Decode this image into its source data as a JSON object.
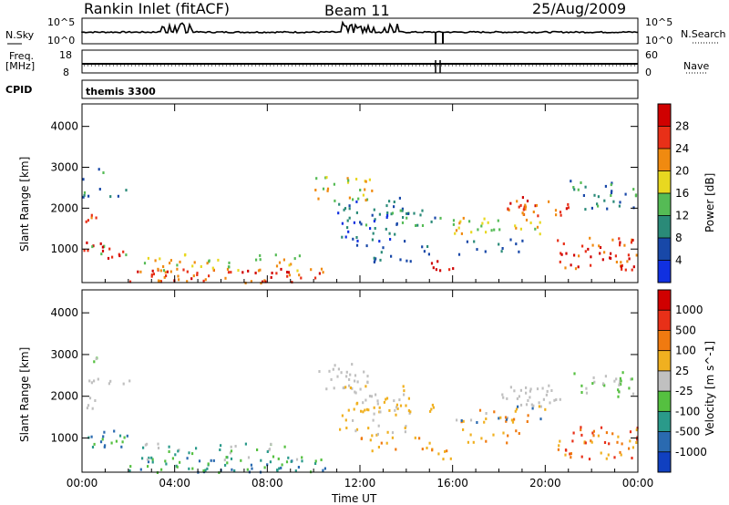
{
  "header": {
    "station": "Rankin Inlet (fitACF)",
    "beam": "Beam 11",
    "date": "25/Aug/2009"
  },
  "panel_labels": {
    "nsky": "N.Sky",
    "nsearch": "N.Search",
    "freq": "Freq.",
    "freq_unit": "[MHz]",
    "nave": "Nave",
    "cpid": "CPID",
    "cpid_value": "themis 3300"
  },
  "noise_ticks": {
    "left": [
      "10^5",
      "10^0"
    ],
    "right": [
      "10^5",
      "10^0"
    ]
  },
  "freq_ticks": {
    "left": [
      "18",
      "8"
    ],
    "right": [
      "60",
      "0"
    ]
  },
  "chart_data": [
    {
      "type": "heatmap",
      "title": "",
      "xlabel": "Time UT",
      "ylabel": "Slant Range [km]",
      "x_ticks": [
        "00:00",
        "04:00",
        "08:00",
        "12:00",
        "16:00",
        "20:00",
        "00:00"
      ],
      "y_ticks": [
        "1000",
        "2000",
        "3000",
        "4000"
      ],
      "colorbar": {
        "label": "Power [dB]",
        "ticks": [
          "4",
          "8",
          "12",
          "16",
          "20",
          "24",
          "28"
        ],
        "colors": [
          "#1030e0",
          "#1848a8",
          "#2a8a78",
          "#55bb55",
          "#e8d820",
          "#f08a10",
          "#e83018",
          "#d00000"
        ]
      }
    },
    {
      "type": "heatmap",
      "title": "",
      "xlabel": "Time UT",
      "ylabel": "Slant Range [km]",
      "x_ticks": [
        "00:00",
        "04:00",
        "08:00",
        "12:00",
        "16:00",
        "20:00",
        "00:00"
      ],
      "y_ticks": [
        "1000",
        "2000",
        "3000",
        "4000"
      ],
      "colorbar": {
        "label": "Velocity [m s^-1]",
        "ticks": [
          "1000",
          "500",
          "100",
          "25",
          "-25",
          "-100",
          "-500",
          "-1000"
        ],
        "colors": [
          "#1040c0",
          "#2a6ab0",
          "#2a9a8a",
          "#55c040",
          "#c0c0c0",
          "#f0b020",
          "#f07a10",
          "#e83018",
          "#d00000"
        ]
      }
    }
  ]
}
